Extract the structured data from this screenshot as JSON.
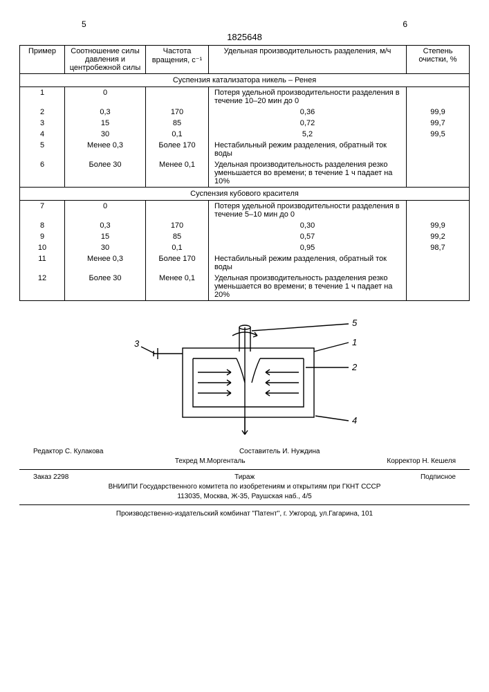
{
  "page_left": "5",
  "patent_number": "1825648",
  "page_right": "6",
  "headers": [
    "Пример",
    "Соотношение силы давления и центробежной силы",
    "Частота вращения, с⁻¹",
    "Удельная производительность разделения, м/ч",
    "Степень очистки, %"
  ],
  "section1_title": "Суспензия катализатора никель – Ренея",
  "rows1": [
    {
      "n": "1",
      "ratio": "0",
      "freq": "",
      "prod": "Потеря удельной производительности разделения в течение 10–20 мин до 0",
      "purity": ""
    },
    {
      "n": "2",
      "ratio": "0,3",
      "freq": "170",
      "prod": "0,36",
      "purity": "99,9"
    },
    {
      "n": "3",
      "ratio": "15",
      "freq": "85",
      "prod": "0,72",
      "purity": "99,7"
    },
    {
      "n": "4",
      "ratio": "30",
      "freq": "0,1",
      "prod": "5,2",
      "purity": "99,5"
    },
    {
      "n": "5",
      "ratio": "Менее 0,3",
      "freq": "Более 170",
      "prod": "Нестабильный режим разделения, обратный ток воды",
      "purity": ""
    },
    {
      "n": "6",
      "ratio": "Более 30",
      "freq": "Менее 0,1",
      "prod": "Удельная производительность разделения резко уменьшается во времени; в течение 1 ч падает на 10%",
      "purity": ""
    }
  ],
  "section2_title": "Суспензия кубового красителя",
  "rows2": [
    {
      "n": "7",
      "ratio": "0",
      "freq": "",
      "prod": "Потеря удельной производительности разделения в течение 5–10 мин до 0",
      "purity": ""
    },
    {
      "n": "8",
      "ratio": "0,3",
      "freq": "170",
      "prod": "0,30",
      "purity": "99,9"
    },
    {
      "n": "9",
      "ratio": "15",
      "freq": "85",
      "prod": "0,57",
      "purity": "99,2"
    },
    {
      "n": "10",
      "ratio": "30",
      "freq": "0,1",
      "prod": "0,95",
      "purity": "98,7"
    },
    {
      "n": "11",
      "ratio": "Менее 0,3",
      "freq": "Более 170",
      "prod": "Нестабильный режим разделения, обратный ток воды",
      "purity": ""
    },
    {
      "n": "12",
      "ratio": "Более 30",
      "freq": "Менее 0,1",
      "prod": "Удельная производительность разделения резко уменьшается во времени; в течение 1 ч падает на 20%",
      "purity": ""
    }
  ],
  "diagram": {
    "labels": {
      "l1": "1",
      "l2": "2",
      "l3": "3",
      "l4": "4",
      "l5": "5"
    },
    "stroke": "#000000",
    "stroke_width": 1.4
  },
  "credits": {
    "editor_label": "Редактор",
    "editor": "С. Кулакова",
    "compiler_label": "Составитель",
    "compiler": "И. Нуждина",
    "techred_label": "Техред",
    "techred": "М.Моргенталь",
    "corrector_label": "Корректор",
    "corrector": "Н. Кешеля"
  },
  "footer1": {
    "order": "Заказ 2298",
    "tiraj": "Тираж",
    "subscr": "Подписное",
    "org": "ВНИИПИ Государственного комитета по изобретениям и открытиям при ГКНТ СССР",
    "addr": "113035, Москва, Ж-35, Раушская наб., 4/5"
  },
  "footer2": "Производственно-издательский комбинат \"Патент\", г. Ужгород, ул.Гагарина, 101"
}
